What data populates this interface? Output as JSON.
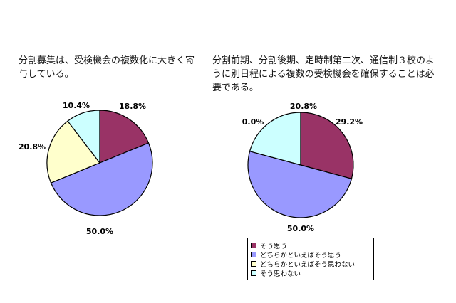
{
  "colors": {
    "so_omou": "#993366",
    "dochiraka_so_omou": "#9999ff",
    "dochiraka_so_omowanai": "#ffffcc",
    "so_omowanai": "#ccffff",
    "outline": "#000000"
  },
  "chart_data": [
    {
      "type": "pie",
      "title": "分割募集は、受検機会の複数化に大きく寄与している。",
      "start": "top",
      "direction": "clockwise",
      "slices": [
        {
          "label": "そう思う",
          "value": 18.8,
          "display": "18.8%"
        },
        {
          "label": "どちらかといえばそう思う",
          "value": 50.0,
          "display": "50.0%"
        },
        {
          "label": "どちらかといえばそう思わない",
          "value": 20.8,
          "display": "20.8%"
        },
        {
          "label": "そう思わない",
          "value": 10.4,
          "display": "10.4%"
        }
      ]
    },
    {
      "type": "pie",
      "title": "分割前期、分割後期、定時制第二次、通信制３校のように別日程による複数の受検機会を確保することは必要である。",
      "start": "top",
      "direction": "clockwise",
      "legend": "bottom",
      "slices": [
        {
          "label": "そう思う",
          "value": 29.2,
          "display": "29.2%"
        },
        {
          "label": "どちらかといえばそう思う",
          "value": 50.0,
          "display": "50.0%"
        },
        {
          "label": "どちらかといえばそう思わない",
          "value": 0.0,
          "display": "0.0%"
        },
        {
          "label": "そう思わない",
          "value": 20.8,
          "display": "20.8%"
        }
      ]
    }
  ],
  "legend": {
    "items": [
      {
        "label": "そう思う"
      },
      {
        "label": "どちらかといえばそう思う"
      },
      {
        "label": "どちらかといえばそう思わない"
      },
      {
        "label": "そう思わない"
      }
    ]
  }
}
